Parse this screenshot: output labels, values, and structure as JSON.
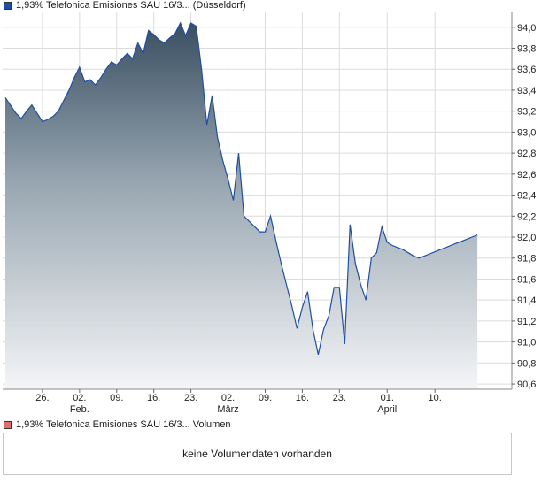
{
  "legend": {
    "price_label": "1,93% Telefonica Emisiones SAU 16/3... (Düsseldorf)",
    "price_color": "#1f4fa0",
    "volume_label": "1,93% Telefonica Emisiones SAU 16/3... Volumen",
    "volume_color": "#e07070"
  },
  "volume_panel": {
    "message": "keine Volumendaten vorhanden"
  },
  "chart_data": {
    "type": "area",
    "ylim": [
      90.55,
      94.15
    ],
    "yticks": [
      "94,0",
      "93,8",
      "93,6",
      "93,4",
      "93,2",
      "93,0",
      "92,8",
      "92,6",
      "92,4",
      "92,2",
      "92,0",
      "91,8",
      "91,6",
      "91,4",
      "91,2",
      "91,0",
      "90,8",
      "90,6"
    ],
    "ytick_values": [
      94.0,
      93.8,
      93.6,
      93.4,
      93.2,
      93.0,
      92.8,
      92.6,
      92.4,
      92.2,
      92.0,
      91.8,
      91.6,
      91.4,
      91.2,
      91.0,
      90.8,
      90.6
    ],
    "xticks": [
      {
        "day": 26,
        "label": "26.",
        "month": ""
      },
      {
        "day": 33,
        "label": "02.",
        "month": "Feb."
      },
      {
        "day": 40,
        "label": "09.",
        "month": ""
      },
      {
        "day": 47,
        "label": "16.",
        "month": ""
      },
      {
        "day": 54,
        "label": "23.",
        "month": ""
      },
      {
        "day": 61,
        "label": "02.",
        "month": "März"
      },
      {
        "day": 68,
        "label": "09.",
        "month": ""
      },
      {
        "day": 75,
        "label": "16.",
        "month": ""
      },
      {
        "day": 82,
        "label": "23.",
        "month": ""
      },
      {
        "day": 91,
        "label": "01.",
        "month": "April"
      },
      {
        "day": 100,
        "label": "10.",
        "month": ""
      }
    ],
    "xlim": [
      18.5,
      114.5
    ],
    "series": [
      {
        "x": [
          19,
          21,
          22,
          23,
          24,
          26,
          27,
          28,
          29,
          30,
          31,
          32,
          33,
          34,
          35,
          36,
          37,
          38,
          39,
          40,
          41,
          42,
          43,
          44,
          45,
          46,
          47,
          48,
          49,
          50,
          51,
          52,
          53,
          54,
          55,
          56,
          57,
          58,
          59,
          60,
          61,
          62,
          63,
          64,
          65,
          66,
          67,
          68,
          69,
          70,
          71,
          72,
          73,
          74,
          75,
          76,
          77,
          78,
          79,
          80,
          81,
          82,
          83,
          84,
          85,
          86,
          87,
          88,
          89,
          90,
          91,
          92,
          93,
          94,
          95,
          96,
          97,
          98,
          99,
          100,
          101,
          102,
          103,
          104,
          105,
          106,
          107,
          108
        ],
        "values": [
          93.33,
          93.18,
          93.13,
          93.2,
          93.26,
          93.1,
          93.12,
          93.15,
          93.2,
          93.3,
          93.4,
          93.52,
          93.62,
          93.48,
          93.5,
          93.45,
          93.52,
          93.6,
          93.67,
          93.64,
          93.7,
          93.75,
          93.7,
          93.85,
          93.75,
          93.97,
          93.93,
          93.88,
          93.85,
          93.9,
          93.94,
          94.04,
          93.92,
          94.04,
          94.01,
          93.6,
          93.07,
          93.35,
          92.95,
          92.73,
          92.55,
          92.35,
          92.8,
          92.2,
          92.15,
          92.1,
          92.05,
          92.05,
          92.2,
          91.97,
          91.75,
          91.55,
          91.35,
          91.13,
          91.33,
          91.48,
          91.12,
          90.88,
          91.12,
          91.25,
          91.52,
          91.52,
          90.98,
          92.12,
          91.75,
          91.55,
          91.4,
          91.8,
          91.85,
          92.1,
          91.95,
          91.92,
          91.9,
          91.88,
          91.85,
          91.82,
          91.8,
          91.82,
          91.84,
          91.86,
          91.88,
          91.9,
          91.92,
          91.94,
          91.96,
          91.98,
          92.0,
          92.02
        ]
      }
    ]
  }
}
